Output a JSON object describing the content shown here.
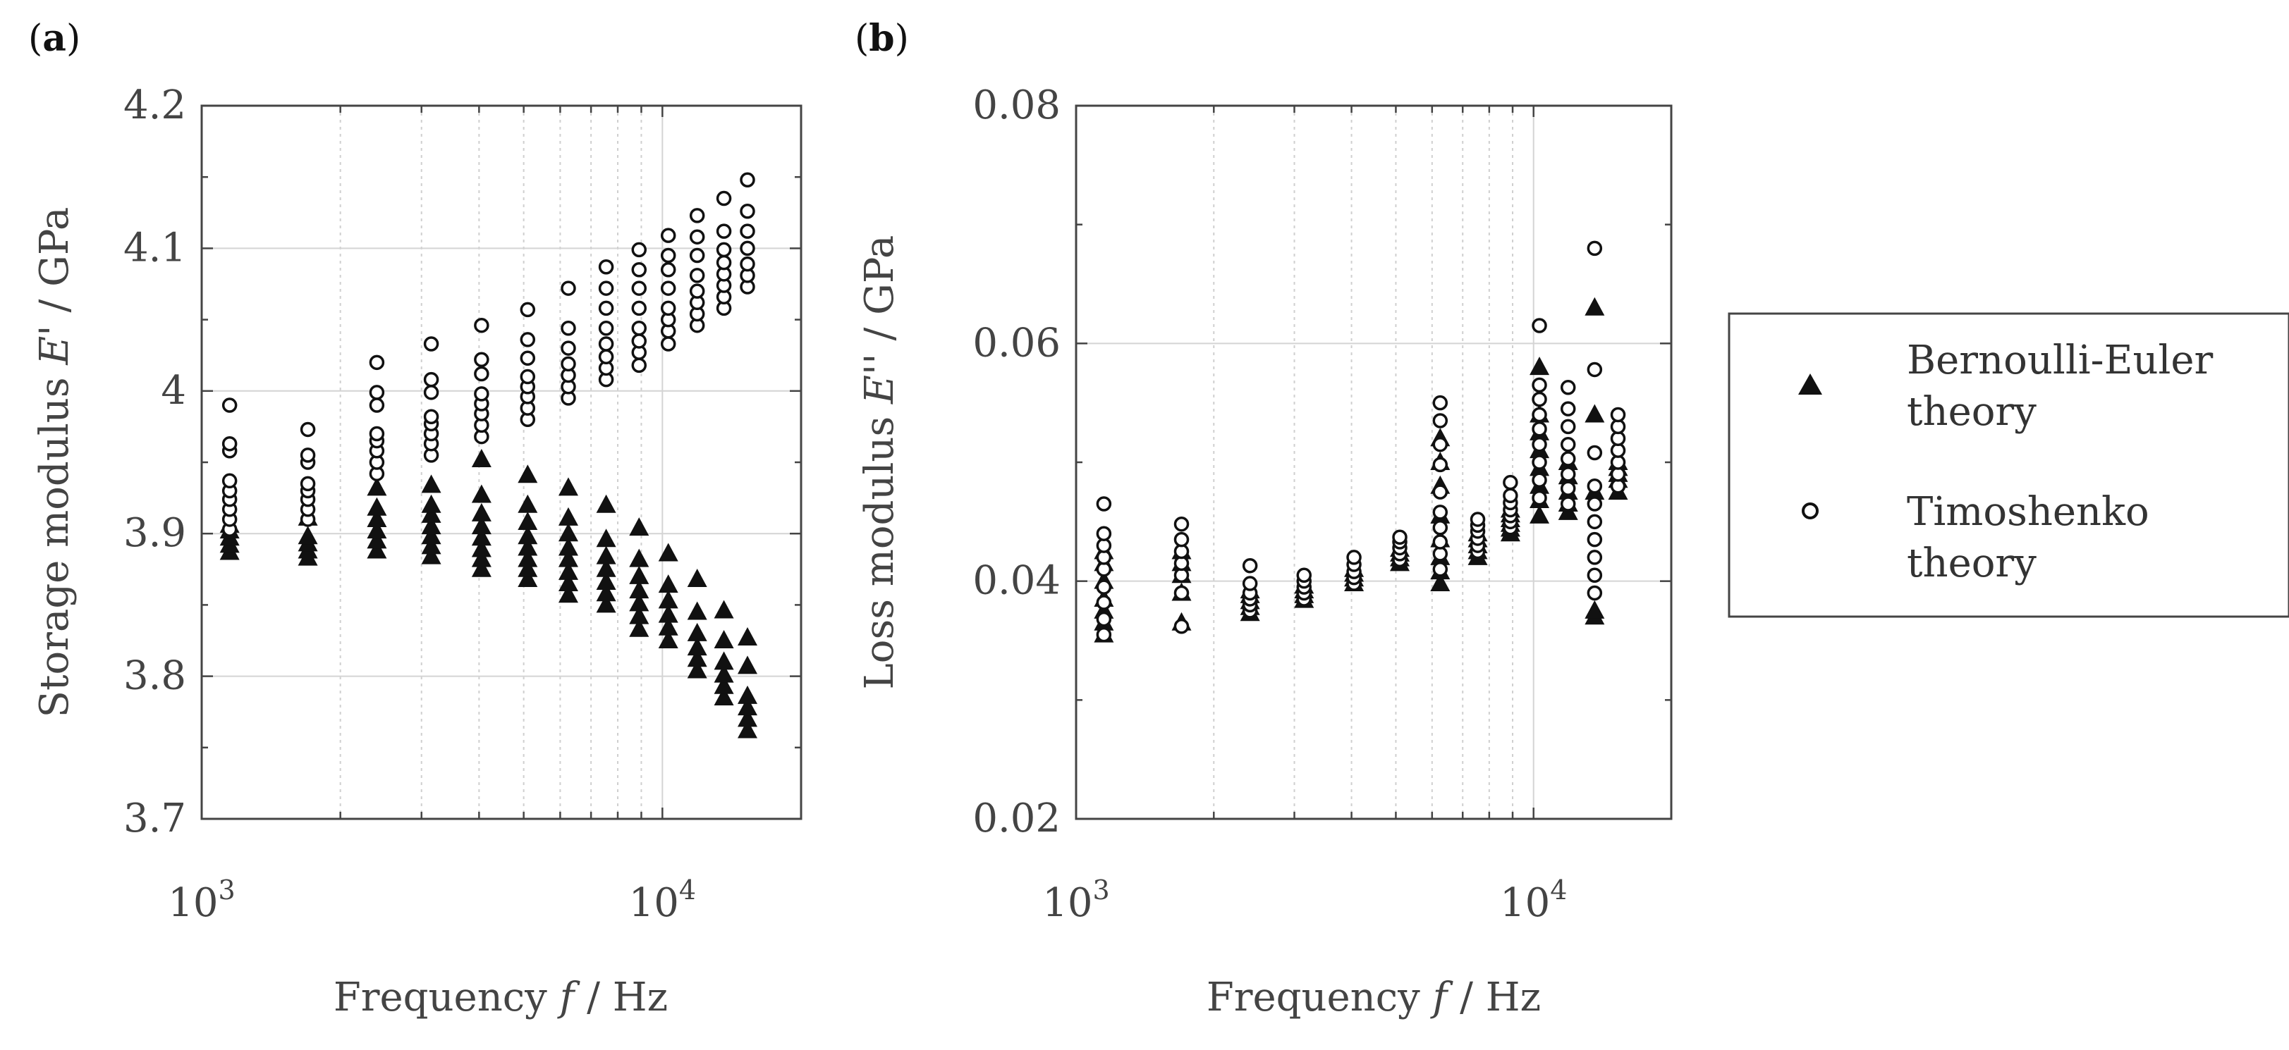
{
  "chart_data": [
    {
      "panel": "(a)",
      "panel_parts": {
        "open": "(",
        "letter": "a",
        "close": ")"
      },
      "type": "scatter",
      "xscale": "log",
      "xlim": [
        1000,
        20000
      ],
      "ylim": [
        3.7,
        4.2
      ],
      "yticks": [
        "4.2",
        "4.1",
        "4",
        "3.9",
        "3.8",
        "3.7"
      ],
      "ytick_values": [
        4.2,
        4.1,
        4.0,
        3.9,
        3.8,
        3.7
      ],
      "xticks": [
        {
          "base": "10",
          "exp": "3",
          "value": 1000
        },
        {
          "base": "10",
          "exp": "4",
          "value": 10000
        }
      ],
      "ylabel": {
        "pre": "Storage modulus ",
        "sym": "E",
        "post": "' / GPa"
      },
      "xlabel": {
        "pre": "Frequency ",
        "sym": "f",
        "post": " / Hz"
      },
      "series": [
        {
          "name": "Bernoulli-Euler theory",
          "marker": "triangle",
          "groups": [
            {
              "x": 1150,
              "y": [
                3.887,
                3.892,
                3.897,
                3.902,
                3.906
              ]
            },
            {
              "x": 1700,
              "y": [
                3.883,
                3.888,
                3.893,
                3.898,
                3.911
              ]
            },
            {
              "x": 2400,
              "y": [
                3.888,
                3.895,
                3.902,
                3.91,
                3.918,
                3.932
              ]
            },
            {
              "x": 3150,
              "y": [
                3.884,
                3.891,
                3.898,
                3.905,
                3.913,
                3.92,
                3.934
              ]
            },
            {
              "x": 4050,
              "y": [
                3.875,
                3.882,
                3.889,
                3.897,
                3.905,
                3.914,
                3.927,
                3.952
              ]
            },
            {
              "x": 5100,
              "y": [
                3.868,
                3.875,
                3.882,
                3.89,
                3.898,
                3.908,
                3.92,
                3.941
              ]
            },
            {
              "x": 6250,
              "y": [
                3.857,
                3.865,
                3.873,
                3.882,
                3.89,
                3.9,
                3.911,
                3.932
              ]
            },
            {
              "x": 7550,
              "y": [
                3.85,
                3.858,
                3.866,
                3.875,
                3.884,
                3.896,
                3.92
              ]
            },
            {
              "x": 8900,
              "y": [
                3.833,
                3.842,
                3.851,
                3.86,
                3.87,
                3.882,
                3.904
              ]
            },
            {
              "x": 10300,
              "y": [
                3.825,
                3.834,
                3.843,
                3.853,
                3.864,
                3.886
              ]
            },
            {
              "x": 11900,
              "y": [
                3.804,
                3.812,
                3.82,
                3.83,
                3.845,
                3.868
              ]
            },
            {
              "x": 13600,
              "y": [
                3.785,
                3.793,
                3.801,
                3.81,
                3.825,
                3.846
              ]
            },
            {
              "x": 15300,
              "y": [
                3.762,
                3.77,
                3.778,
                3.786,
                3.807,
                3.827
              ]
            }
          ]
        },
        {
          "name": "Timoshenko theory",
          "marker": "circle",
          "groups": [
            {
              "x": 1150,
              "y": [
                3.903,
                3.91,
                3.917,
                3.924,
                3.93,
                3.937,
                3.958,
                3.963,
                3.99
              ]
            },
            {
              "x": 1700,
              "y": [
                3.91,
                3.917,
                3.924,
                3.93,
                3.935,
                3.95,
                3.955,
                3.973
              ]
            },
            {
              "x": 2400,
              "y": [
                3.942,
                3.95,
                3.958,
                3.965,
                3.97,
                3.99,
                3.999,
                4.02
              ]
            },
            {
              "x": 3150,
              "y": [
                3.955,
                3.963,
                3.97,
                3.977,
                3.982,
                3.999,
                4.008,
                4.033
              ]
            },
            {
              "x": 4050,
              "y": [
                3.968,
                3.976,
                3.984,
                3.991,
                3.998,
                4.012,
                4.022,
                4.046
              ]
            },
            {
              "x": 5100,
              "y": [
                3.98,
                3.988,
                3.996,
                4.003,
                4.01,
                4.023,
                4.036,
                4.057
              ]
            },
            {
              "x": 6250,
              "y": [
                3.995,
                4.003,
                4.011,
                4.019,
                4.03,
                4.044,
                4.072
              ]
            },
            {
              "x": 7550,
              "y": [
                4.008,
                4.016,
                4.024,
                4.033,
                4.044,
                4.058,
                4.072,
                4.087
              ]
            },
            {
              "x": 8900,
              "y": [
                4.018,
                4.027,
                4.035,
                4.044,
                4.058,
                4.072,
                4.085,
                4.099
              ]
            },
            {
              "x": 10300,
              "y": [
                4.033,
                4.042,
                4.05,
                4.058,
                4.072,
                4.085,
                4.095,
                4.109
              ]
            },
            {
              "x": 11900,
              "y": [
                4.046,
                4.054,
                4.062,
                4.07,
                4.081,
                4.095,
                4.108,
                4.123
              ]
            },
            {
              "x": 13600,
              "y": [
                4.058,
                4.066,
                4.074,
                4.082,
                4.09,
                4.099,
                4.112,
                4.135
              ]
            },
            {
              "x": 15300,
              "y": [
                4.073,
                4.081,
                4.089,
                4.1,
                4.112,
                4.126,
                4.148
              ]
            }
          ]
        }
      ]
    },
    {
      "panel": "(b)",
      "panel_parts": {
        "open": "(",
        "letter": "b",
        "close": ")"
      },
      "type": "scatter",
      "xscale": "log",
      "xlim": [
        1000,
        20000
      ],
      "ylim": [
        0.02,
        0.08
      ],
      "yticks": [
        "0.08",
        "0.06",
        "0.04",
        "0.02"
      ],
      "ytick_values": [
        0.08,
        0.06,
        0.04,
        0.02
      ],
      "xticks": [
        {
          "base": "10",
          "exp": "3",
          "value": 1000
        },
        {
          "base": "10",
          "exp": "4",
          "value": 10000
        }
      ],
      "ylabel": {
        "pre": "Loss modulus ",
        "sym": "E",
        "post": "'' / GPa"
      },
      "xlabel": {
        "pre": "Frequency ",
        "sym": "f",
        "post": " / Hz"
      },
      "series": [
        {
          "name": "Bernoulli-Euler theory",
          "marker": "triangle",
          "groups": [
            {
              "x": 1150,
              "y": [
                0.0355,
                0.0365,
                0.0375,
                0.0385,
                0.04,
                0.0415,
                0.0425
              ]
            },
            {
              "x": 1700,
              "y": [
                0.0365,
                0.039,
                0.0405,
                0.0415,
                0.0425
              ]
            },
            {
              "x": 2400,
              "y": [
                0.0373,
                0.0378,
                0.0383,
                0.0388,
                0.0392
              ]
            },
            {
              "x": 3150,
              "y": [
                0.0384,
                0.0388,
                0.0392,
                0.0396
              ]
            },
            {
              "x": 4050,
              "y": [
                0.0398,
                0.0402,
                0.0406,
                0.041
              ]
            },
            {
              "x": 5100,
              "y": [
                0.0415,
                0.0419,
                0.0423,
                0.0427
              ]
            },
            {
              "x": 6250,
              "y": [
                0.0398,
                0.0408,
                0.042,
                0.0435,
                0.0455,
                0.048,
                0.05,
                0.052
              ]
            },
            {
              "x": 7550,
              "y": [
                0.042,
                0.0425,
                0.043,
                0.0435,
                0.044
              ]
            },
            {
              "x": 8900,
              "y": [
                0.044,
                0.0444,
                0.0448,
                0.0452,
                0.0456,
                0.046
              ]
            },
            {
              "x": 10300,
              "y": [
                0.0455,
                0.0468,
                0.048,
                0.0495,
                0.051,
                0.0525,
                0.054,
                0.058
              ]
            },
            {
              "x": 11900,
              "y": [
                0.0458,
                0.0465,
                0.0475,
                0.0488,
                0.05
              ]
            },
            {
              "x": 13600,
              "y": [
                0.037,
                0.0375,
                0.0475,
                0.054,
                0.063
              ]
            },
            {
              "x": 15300,
              "y": [
                0.0475,
                0.0485,
                0.049,
                0.0495,
                0.05
              ]
            }
          ]
        },
        {
          "name": "Timoshenko theory",
          "marker": "circle",
          "groups": [
            {
              "x": 1150,
              "y": [
                0.0355,
                0.0368,
                0.0382,
                0.0395,
                0.041,
                0.042,
                0.043,
                0.044,
                0.0465
              ]
            },
            {
              "x": 1700,
              "y": [
                0.0362,
                0.039,
                0.0405,
                0.0415,
                0.0425,
                0.0435,
                0.0448
              ]
            },
            {
              "x": 2400,
              "y": [
                0.0375,
                0.038,
                0.0385,
                0.039,
                0.0398,
                0.0413
              ]
            },
            {
              "x": 3150,
              "y": [
                0.0385,
                0.039,
                0.0395,
                0.04,
                0.0405
              ]
            },
            {
              "x": 4050,
              "y": [
                0.0398,
                0.0403,
                0.0408,
                0.0414,
                0.042
              ]
            },
            {
              "x": 5100,
              "y": [
                0.0418,
                0.0423,
                0.0428,
                0.0433,
                0.0437
              ]
            },
            {
              "x": 6250,
              "y": [
                0.041,
                0.0423,
                0.0433,
                0.0445,
                0.0458,
                0.0475,
                0.0498,
                0.0515,
                0.0535,
                0.055
              ]
            },
            {
              "x": 7550,
              "y": [
                0.0425,
                0.043,
                0.0436,
                0.0442,
                0.0447,
                0.0452
              ]
            },
            {
              "x": 8900,
              "y": [
                0.0445,
                0.045,
                0.0455,
                0.046,
                0.0466,
                0.0472,
                0.0483
              ]
            },
            {
              "x": 10300,
              "y": [
                0.047,
                0.0485,
                0.05,
                0.0515,
                0.0528,
                0.054,
                0.0553,
                0.0565,
                0.0615
              ]
            },
            {
              "x": 11900,
              "y": [
                0.0465,
                0.0478,
                0.049,
                0.0503,
                0.0515,
                0.053,
                0.0545,
                0.0563
              ]
            },
            {
              "x": 13600,
              "y": [
                0.039,
                0.0405,
                0.042,
                0.0435,
                0.045,
                0.0465,
                0.048,
                0.0508,
                0.0578,
                0.068
              ]
            },
            {
              "x": 15300,
              "y": [
                0.048,
                0.049,
                0.05,
                0.051,
                0.052,
                0.053,
                0.054
              ]
            }
          ]
        }
      ]
    }
  ],
  "legend": {
    "items": [
      {
        "marker": "triangle",
        "line1": "Bernoulli-Euler",
        "line2": "theory"
      },
      {
        "marker": "circle",
        "line1": "Timoshenko",
        "line2": "theory"
      }
    ]
  }
}
